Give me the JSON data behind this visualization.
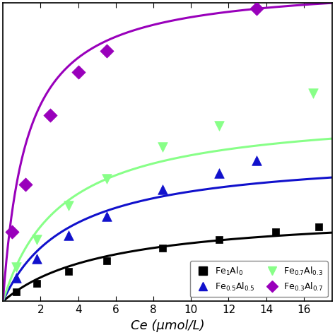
{
  "title": "",
  "xlabel": "Ce (μmol/L)",
  "ylabel": "",
  "xlim": [
    0,
    17.5
  ],
  "ylim": [
    0,
    28
  ],
  "series": [
    {
      "label": "Fe$_1$Al$_0$",
      "color": "#000000",
      "marker": "s",
      "marker_size": 6,
      "line_width": 2.2,
      "Qmax": 8.5,
      "KL": 0.18,
      "scatter_x": [
        0.7,
        1.8,
        3.5,
        5.5,
        8.5,
        11.5,
        14.5,
        16.8
      ],
      "scatter_y": [
        0.9,
        1.7,
        2.8,
        3.8,
        5.0,
        5.8,
        6.5,
        7.0
      ]
    },
    {
      "label": "Fe$_{0.5}$Al$_{0.5}$",
      "color": "#1111CC",
      "marker": "^",
      "marker_size": 8,
      "line_width": 2.2,
      "Qmax": 14.0,
      "KL": 0.28,
      "scatter_x": [
        0.7,
        1.8,
        3.5,
        5.5,
        8.5,
        11.5,
        13.5
      ],
      "scatter_y": [
        2.2,
        4.0,
        6.2,
        8.0,
        10.5,
        12.0,
        13.2
      ]
    },
    {
      "label": "Fe$_{0.7}$Al$_{0.3}$",
      "color": "#88FF88",
      "marker": "v",
      "marker_size": 8,
      "line_width": 2.2,
      "Qmax": 18.0,
      "KL": 0.32,
      "scatter_x": [
        0.7,
        1.8,
        3.5,
        5.5,
        8.5,
        11.5,
        16.5
      ],
      "scatter_y": [
        3.2,
        5.8,
        9.0,
        11.5,
        14.5,
        16.5,
        19.5
      ]
    },
    {
      "label": "Fe$_{0.3}$Al$_{0.7}$",
      "color": "#9900BB",
      "marker": "D",
      "marker_size": 8,
      "line_width": 2.2,
      "Qmax": 30.0,
      "KL": 0.8,
      "scatter_x": [
        0.5,
        1.2,
        2.5,
        4.0,
        5.5,
        13.5
      ],
      "scatter_y": [
        6.5,
        11.0,
        17.5,
        21.5,
        23.5,
        27.5
      ]
    }
  ],
  "legend_items": [
    {
      "label": "Fe$_1$Al$_0$",
      "color": "#000000",
      "marker": "s"
    },
    {
      "label": "Fe$_{0.5}$Al$_{0.5}$",
      "color": "#1111CC",
      "marker": "^"
    },
    {
      "label": "Fe$_{0.7}$Al$_{0.3}$",
      "color": "#88FF88",
      "marker": "v"
    },
    {
      "label": "Fe$_{0.3}$Al$_{0.7}$",
      "color": "#9900BB",
      "marker": "D"
    }
  ],
  "xticks": [
    2,
    4,
    6,
    8,
    10,
    12,
    14,
    16
  ],
  "background_color": "#ffffff",
  "tick_fontsize": 11,
  "label_fontsize": 13
}
